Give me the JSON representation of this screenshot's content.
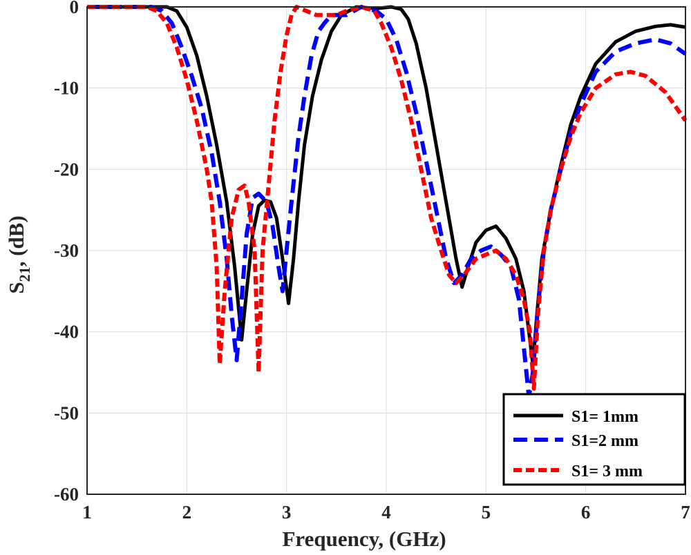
{
  "chart_data": {
    "type": "line",
    "title": "",
    "xlabel": "Frequency, (GHz)",
    "ylabel": {
      "main": "S",
      "sub": "21",
      "rest": ", (dB)"
    },
    "xlim": [
      1,
      7
    ],
    "ylim": [
      -60,
      0
    ],
    "xticks": [
      1,
      2,
      3,
      4,
      5,
      6,
      7
    ],
    "yticks": [
      0,
      -10,
      -20,
      -30,
      -40,
      -50,
      -60
    ],
    "grid": true,
    "legend_position": "bottom-right",
    "series": [
      {
        "name": "S1= 1mm",
        "color": "#000000",
        "style": "solid",
        "points": [
          [
            1.0,
            0
          ],
          [
            1.5,
            0
          ],
          [
            1.8,
            0
          ],
          [
            1.9,
            -0.5
          ],
          [
            2.0,
            -2.5
          ],
          [
            2.1,
            -6
          ],
          [
            2.2,
            -11
          ],
          [
            2.3,
            -17
          ],
          [
            2.4,
            -24
          ],
          [
            2.48,
            -32
          ],
          [
            2.55,
            -41
          ],
          [
            2.6,
            -35
          ],
          [
            2.66,
            -28
          ],
          [
            2.72,
            -24.5
          ],
          [
            2.78,
            -23.8
          ],
          [
            2.84,
            -24
          ],
          [
            2.9,
            -26
          ],
          [
            2.96,
            -31
          ],
          [
            3.02,
            -36.5
          ],
          [
            3.07,
            -31
          ],
          [
            3.12,
            -24
          ],
          [
            3.18,
            -17
          ],
          [
            3.26,
            -11
          ],
          [
            3.35,
            -6.5
          ],
          [
            3.45,
            -3
          ],
          [
            3.55,
            -1
          ],
          [
            3.7,
            0
          ],
          [
            3.9,
            -0.2
          ],
          [
            4.05,
            0
          ],
          [
            4.15,
            -0.3
          ],
          [
            4.22,
            -1.5
          ],
          [
            4.3,
            -4.5
          ],
          [
            4.4,
            -10
          ],
          [
            4.5,
            -17
          ],
          [
            4.6,
            -24
          ],
          [
            4.7,
            -31
          ],
          [
            4.76,
            -34.5
          ],
          [
            4.82,
            -32
          ],
          [
            4.9,
            -29
          ],
          [
            5.0,
            -27.5
          ],
          [
            5.1,
            -27
          ],
          [
            5.2,
            -28.5
          ],
          [
            5.3,
            -31
          ],
          [
            5.38,
            -35
          ],
          [
            5.43,
            -40
          ],
          [
            5.47,
            -44
          ],
          [
            5.51,
            -38
          ],
          [
            5.56,
            -31
          ],
          [
            5.65,
            -25
          ],
          [
            5.75,
            -19.5
          ],
          [
            5.85,
            -14.5
          ],
          [
            5.95,
            -11
          ],
          [
            6.1,
            -7
          ],
          [
            6.3,
            -4.3
          ],
          [
            6.5,
            -3
          ],
          [
            6.7,
            -2.4
          ],
          [
            6.85,
            -2.2
          ],
          [
            7.0,
            -2.5
          ]
        ]
      },
      {
        "name": "S1=2 mm",
        "color": "#0000ff",
        "style": "dashed",
        "points": [
          [
            1.0,
            0
          ],
          [
            1.5,
            0
          ],
          [
            1.65,
            0
          ],
          [
            1.75,
            -0.5
          ],
          [
            1.85,
            -2
          ],
          [
            1.95,
            -5
          ],
          [
            2.05,
            -8.5
          ],
          [
            2.15,
            -12.5
          ],
          [
            2.25,
            -18
          ],
          [
            2.33,
            -24
          ],
          [
            2.4,
            -31
          ],
          [
            2.45,
            -38
          ],
          [
            2.5,
            -43.5
          ],
          [
            2.55,
            -36
          ],
          [
            2.6,
            -28
          ],
          [
            2.66,
            -23.5
          ],
          [
            2.72,
            -23
          ],
          [
            2.8,
            -24
          ],
          [
            2.86,
            -27
          ],
          [
            2.92,
            -32
          ],
          [
            2.96,
            -35
          ],
          [
            3.0,
            -30
          ],
          [
            3.05,
            -24
          ],
          [
            3.12,
            -16
          ],
          [
            3.18,
            -11
          ],
          [
            3.25,
            -6
          ],
          [
            3.32,
            -3
          ],
          [
            3.38,
            -2
          ],
          [
            3.45,
            -1
          ],
          [
            3.6,
            -1
          ],
          [
            3.75,
            0
          ],
          [
            3.9,
            -0.5
          ],
          [
            4.0,
            -1.5
          ],
          [
            4.1,
            -4
          ],
          [
            4.2,
            -8
          ],
          [
            4.3,
            -13
          ],
          [
            4.4,
            -19
          ],
          [
            4.5,
            -25
          ],
          [
            4.6,
            -31
          ],
          [
            4.68,
            -34
          ],
          [
            4.76,
            -33
          ],
          [
            4.85,
            -31
          ],
          [
            4.95,
            -30
          ],
          [
            5.05,
            -29.5
          ],
          [
            5.15,
            -30.5
          ],
          [
            5.25,
            -32
          ],
          [
            5.33,
            -36
          ],
          [
            5.38,
            -42
          ],
          [
            5.43,
            -48
          ],
          [
            5.47,
            -45
          ],
          [
            5.52,
            -37
          ],
          [
            5.58,
            -30
          ],
          [
            5.65,
            -25
          ],
          [
            5.75,
            -20
          ],
          [
            5.85,
            -15.5
          ],
          [
            5.95,
            -12
          ],
          [
            6.1,
            -8
          ],
          [
            6.3,
            -5.5
          ],
          [
            6.5,
            -4.5
          ],
          [
            6.7,
            -4
          ],
          [
            6.85,
            -4.5
          ],
          [
            7.0,
            -5.8
          ]
        ]
      },
      {
        "name": "S1= 3 mm",
        "color": "#ff0000",
        "style": "dashed",
        "points": [
          [
            1.0,
            0
          ],
          [
            1.4,
            0
          ],
          [
            1.6,
            0
          ],
          [
            1.7,
            -0.5
          ],
          [
            1.8,
            -2
          ],
          [
            1.9,
            -5
          ],
          [
            2.0,
            -9
          ],
          [
            2.1,
            -14
          ],
          [
            2.2,
            -20
          ],
          [
            2.25,
            -24
          ],
          [
            2.3,
            -32
          ],
          [
            2.33,
            -44
          ],
          [
            2.38,
            -35
          ],
          [
            2.45,
            -26
          ],
          [
            2.52,
            -22.5
          ],
          [
            2.58,
            -22
          ],
          [
            2.62,
            -24
          ],
          [
            2.68,
            -30
          ],
          [
            2.72,
            -45
          ],
          [
            2.76,
            -30
          ],
          [
            2.82,
            -22
          ],
          [
            2.88,
            -14
          ],
          [
            2.94,
            -8
          ],
          [
            3.0,
            -3.5
          ],
          [
            3.05,
            -1
          ],
          [
            3.1,
            0
          ],
          [
            3.2,
            -0.5
          ],
          [
            3.3,
            -1
          ],
          [
            3.4,
            -1
          ],
          [
            3.5,
            -1
          ],
          [
            3.6,
            -0.5
          ],
          [
            3.75,
            0
          ],
          [
            3.88,
            -0.5
          ],
          [
            3.95,
            -2
          ],
          [
            4.05,
            -5
          ],
          [
            4.15,
            -9
          ],
          [
            4.25,
            -14
          ],
          [
            4.35,
            -20
          ],
          [
            4.45,
            -26
          ],
          [
            4.55,
            -30
          ],
          [
            4.63,
            -33
          ],
          [
            4.7,
            -34
          ],
          [
            4.78,
            -33
          ],
          [
            4.9,
            -31
          ],
          [
            5.0,
            -30.5
          ],
          [
            5.1,
            -30
          ],
          [
            5.2,
            -31
          ],
          [
            5.3,
            -33
          ],
          [
            5.38,
            -36
          ],
          [
            5.44,
            -40
          ],
          [
            5.48,
            -47
          ],
          [
            5.52,
            -38
          ],
          [
            5.58,
            -30
          ],
          [
            5.65,
            -25
          ],
          [
            5.75,
            -20
          ],
          [
            5.85,
            -16
          ],
          [
            5.95,
            -13
          ],
          [
            6.1,
            -10
          ],
          [
            6.3,
            -8.3
          ],
          [
            6.45,
            -8
          ],
          [
            6.6,
            -8.5
          ],
          [
            6.8,
            -10.5
          ],
          [
            7.0,
            -14
          ]
        ]
      }
    ]
  }
}
